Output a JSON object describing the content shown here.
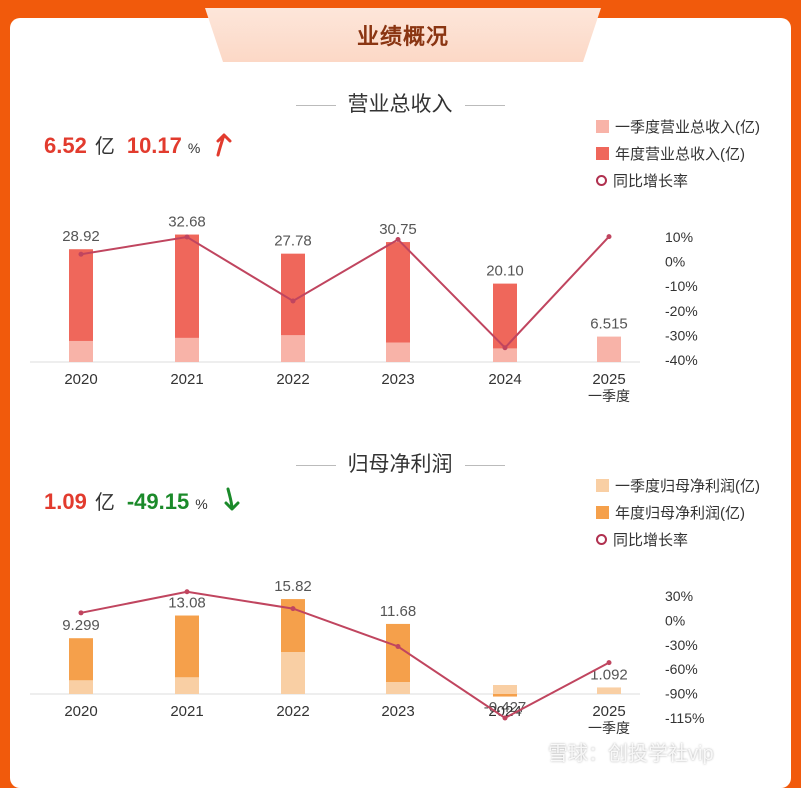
{
  "header": {
    "title": "业绩概况"
  },
  "sections": [
    {
      "title": "营业总收入",
      "kpi": {
        "value": "6.52",
        "unit": "亿",
        "growth": "10.17",
        "pct_sign": "%",
        "trend": "up"
      },
      "legend": [
        "一季度营业总收入(亿)",
        "年度营业总收入(亿)",
        "同比增长率"
      ]
    },
    {
      "title": "归母净利润",
      "kpi": {
        "value": "1.09",
        "unit": "亿",
        "growth": "-49.15",
        "pct_sign": "%",
        "trend": "down"
      },
      "legend": [
        "一季度归母净利润(亿)",
        "年度归母净利润(亿)",
        "同比增长率"
      ]
    }
  ],
  "colors": {
    "q1_revenue": "#f8b3a8",
    "annual_revenue": "#ef675b",
    "q1_profit": "#f9cfa4",
    "annual_profit": "#f5a04b",
    "growth_line": "#c0455f",
    "up": "#e23b2e",
    "down": "#1b8a2a"
  },
  "chart_data": [
    {
      "type": "bar",
      "categories": [
        "2020",
        "2021",
        "2022",
        "2023",
        "2024",
        "2025\n一季度"
      ],
      "series": [
        {
          "name": "一季度营业总收入(亿)",
          "values": [
            5.4,
            6.2,
            6.9,
            5.0,
            3.5,
            6.515
          ]
        },
        {
          "name": "年度营业总收入(亿)",
          "values": [
            28.92,
            32.68,
            27.78,
            30.75,
            20.1,
            null
          ]
        },
        {
          "name": "同比增长率",
          "values": [
            3,
            10,
            -16,
            9,
            -35,
            10.17
          ],
          "axis": "right"
        }
      ],
      "data_labels": [
        "28.92",
        "32.68",
        "27.78",
        "30.75",
        "20.10",
        "6.515"
      ],
      "y_right_ticks": [
        "10%",
        "0%",
        "-10%",
        "-20%",
        "-30%",
        "-40%"
      ],
      "y_right_range": [
        -40,
        10
      ]
    },
    {
      "type": "bar",
      "categories": [
        "2020",
        "2021",
        "2022",
        "2023",
        "2024",
        "2025\n一季度"
      ],
      "series": [
        {
          "name": "一季度归母净利润(亿)",
          "values": [
            2.3,
            2.8,
            7.0,
            2.0,
            1.5,
            1.092
          ]
        },
        {
          "name": "年度归母净利润(亿)",
          "values": [
            9.299,
            13.08,
            15.82,
            11.68,
            -0.427,
            null
          ]
        },
        {
          "name": "同比增长率",
          "values": [
            10,
            35,
            15,
            -30,
            -115,
            -49.15
          ],
          "axis": "right"
        }
      ],
      "data_labels": [
        "9.299",
        "13.08",
        "15.82",
        "11.68",
        "-0.427",
        "1.092"
      ],
      "y_right_ticks": [
        "30%",
        "0%",
        "-30%",
        "-60%",
        "-90%",
        "-115%"
      ],
      "y_right_range": [
        -115,
        30
      ]
    }
  ],
  "watermark": "雪球：创投学社vip"
}
